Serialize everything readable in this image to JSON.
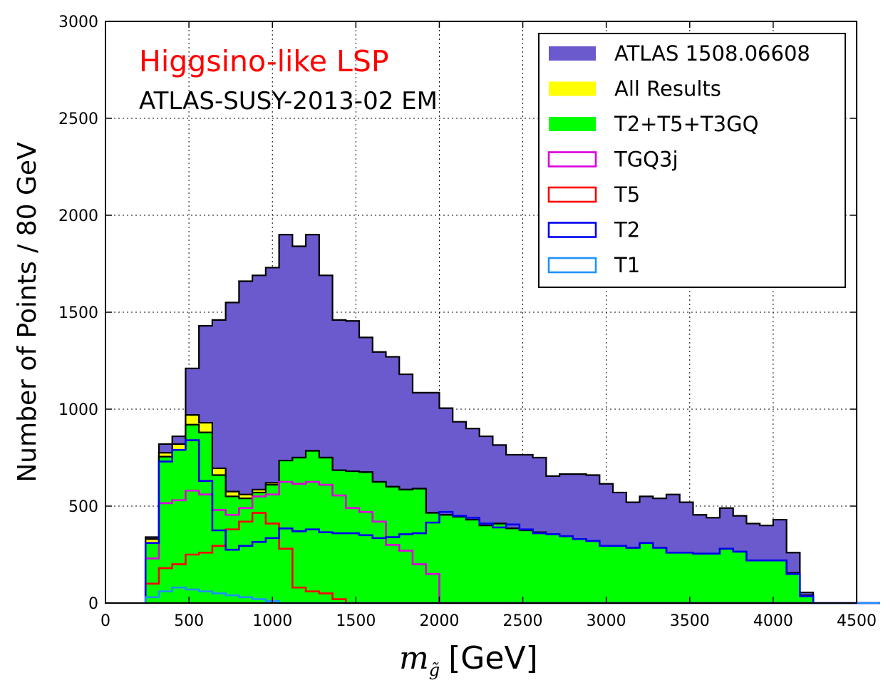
{
  "chart_data": {
    "type": "area",
    "title": "",
    "xlabel_math": "m",
    "xlabel_sub": "g̃",
    "xlabel_unit": "[GeV]",
    "ylabel": "Number of Points / 80 GeV",
    "xlim": [
      0,
      4500
    ],
    "ylim": [
      0,
      3000
    ],
    "xticks": [
      0,
      500,
      1000,
      1500,
      2000,
      2500,
      3000,
      3500,
      4000,
      4500
    ],
    "yticks": [
      0,
      500,
      1000,
      1500,
      2000,
      2500,
      3000
    ],
    "grid": true,
    "legend_position": "top-right",
    "annotations": [
      {
        "text": "Higgsino-like LSP",
        "color": "#ff0000"
      },
      {
        "text": "ATLAS-SUSY-2013-02 EM",
        "color": "#000000"
      }
    ],
    "bin_width": 80,
    "bin_edges_start": 240,
    "series": [
      {
        "name": "ATLAS 1508.06608",
        "style": "filled",
        "color": "#6a5acd",
        "values": [
          340,
          820,
          860,
          1210,
          1430,
          1460,
          1550,
          1660,
          1690,
          1730,
          1900,
          1840,
          1900,
          1690,
          1460,
          1455,
          1370,
          1295,
          1270,
          1180,
          1085,
          1085,
          1005,
          935,
          900,
          860,
          815,
          765,
          765,
          750,
          655,
          665,
          665,
          660,
          615,
          570,
          520,
          550,
          540,
          560,
          520,
          455,
          440,
          490,
          450,
          410,
          400,
          430,
          260,
          55,
          0,
          0,
          0,
          0,
          0
        ]
      },
      {
        "name": "All Results",
        "style": "filled",
        "color": "#ffff00",
        "values": [
          330,
          775,
          820,
          970,
          930,
          695,
          575,
          560,
          585,
          620,
          735,
          750,
          785,
          750,
          685,
          680,
          675,
          625,
          600,
          585,
          590,
          465,
          455,
          445,
          430,
          400,
          410,
          385,
          375,
          365,
          355,
          345,
          330,
          320,
          295,
          295,
          285,
          310,
          285,
          260,
          260,
          255,
          255,
          280,
          265,
          220,
          220,
          220,
          155,
          40,
          0,
          0,
          0,
          0,
          0
        ]
      },
      {
        "name": "T2+T5+T3GQ",
        "style": "filled",
        "color": "#00ff00",
        "values": [
          310,
          755,
          790,
          920,
          880,
          660,
          550,
          540,
          570,
          610,
          735,
          750,
          785,
          750,
          685,
          680,
          675,
          625,
          600,
          585,
          590,
          465,
          455,
          445,
          430,
          400,
          410,
          385,
          375,
          365,
          355,
          345,
          330,
          320,
          295,
          295,
          285,
          310,
          285,
          260,
          260,
          255,
          255,
          280,
          265,
          220,
          220,
          220,
          155,
          40,
          0,
          0,
          0,
          0,
          0
        ]
      },
      {
        "name": "TGQ3j",
        "style": "step",
        "color": "#dd00dd",
        "values": [
          230,
          515,
          530,
          580,
          560,
          480,
          455,
          490,
          550,
          560,
          625,
          615,
          625,
          610,
          555,
          490,
          470,
          420,
          300,
          270,
          200,
          150,
          0,
          0,
          0,
          0,
          0,
          0,
          0,
          0,
          0,
          0,
          0,
          0,
          0,
          0,
          0,
          0,
          0,
          0,
          0,
          0,
          0,
          0,
          0,
          0,
          0,
          0,
          0,
          0,
          0,
          0,
          0,
          0,
          0
        ]
      },
      {
        "name": "T5",
        "style": "step",
        "color": "#ff0000",
        "values": [
          100,
          180,
          200,
          250,
          260,
          295,
          380,
          420,
          465,
          410,
          280,
          80,
          60,
          50,
          20,
          0,
          0,
          0,
          0,
          0,
          0,
          0,
          0,
          0,
          0,
          0,
          0,
          0,
          0,
          0,
          0,
          0,
          0,
          0,
          0,
          0,
          0,
          0,
          0,
          0,
          0,
          0,
          0,
          0,
          0,
          0,
          0,
          0,
          0,
          0,
          0,
          0,
          0,
          0,
          0
        ]
      },
      {
        "name": "T2",
        "style": "step",
        "color": "#0000ee",
        "values": [
          310,
          730,
          790,
          840,
          630,
          375,
          275,
          295,
          315,
          335,
          385,
          370,
          380,
          365,
          360,
          360,
          350,
          335,
          340,
          355,
          360,
          415,
          470,
          450,
          440,
          410,
          390,
          405,
          380,
          360,
          355,
          345,
          330,
          320,
          295,
          295,
          285,
          310,
          285,
          260,
          260,
          255,
          255,
          280,
          265,
          220,
          220,
          220,
          150,
          35,
          0,
          0,
          0,
          0,
          0
        ]
      },
      {
        "name": "T1",
        "style": "step",
        "color": "#1e90ff",
        "values": [
          30,
          60,
          80,
          70,
          60,
          50,
          40,
          30,
          20,
          10,
          0,
          0,
          0,
          0,
          0,
          0,
          0,
          0,
          0,
          0,
          0,
          0,
          0,
          0,
          0,
          0,
          0,
          0,
          0,
          0,
          0,
          0,
          0,
          0,
          0,
          0,
          0,
          0,
          0,
          0,
          0,
          0,
          0,
          0,
          0,
          0,
          0,
          0,
          0,
          0,
          0,
          0,
          0,
          0,
          0
        ]
      }
    ]
  }
}
